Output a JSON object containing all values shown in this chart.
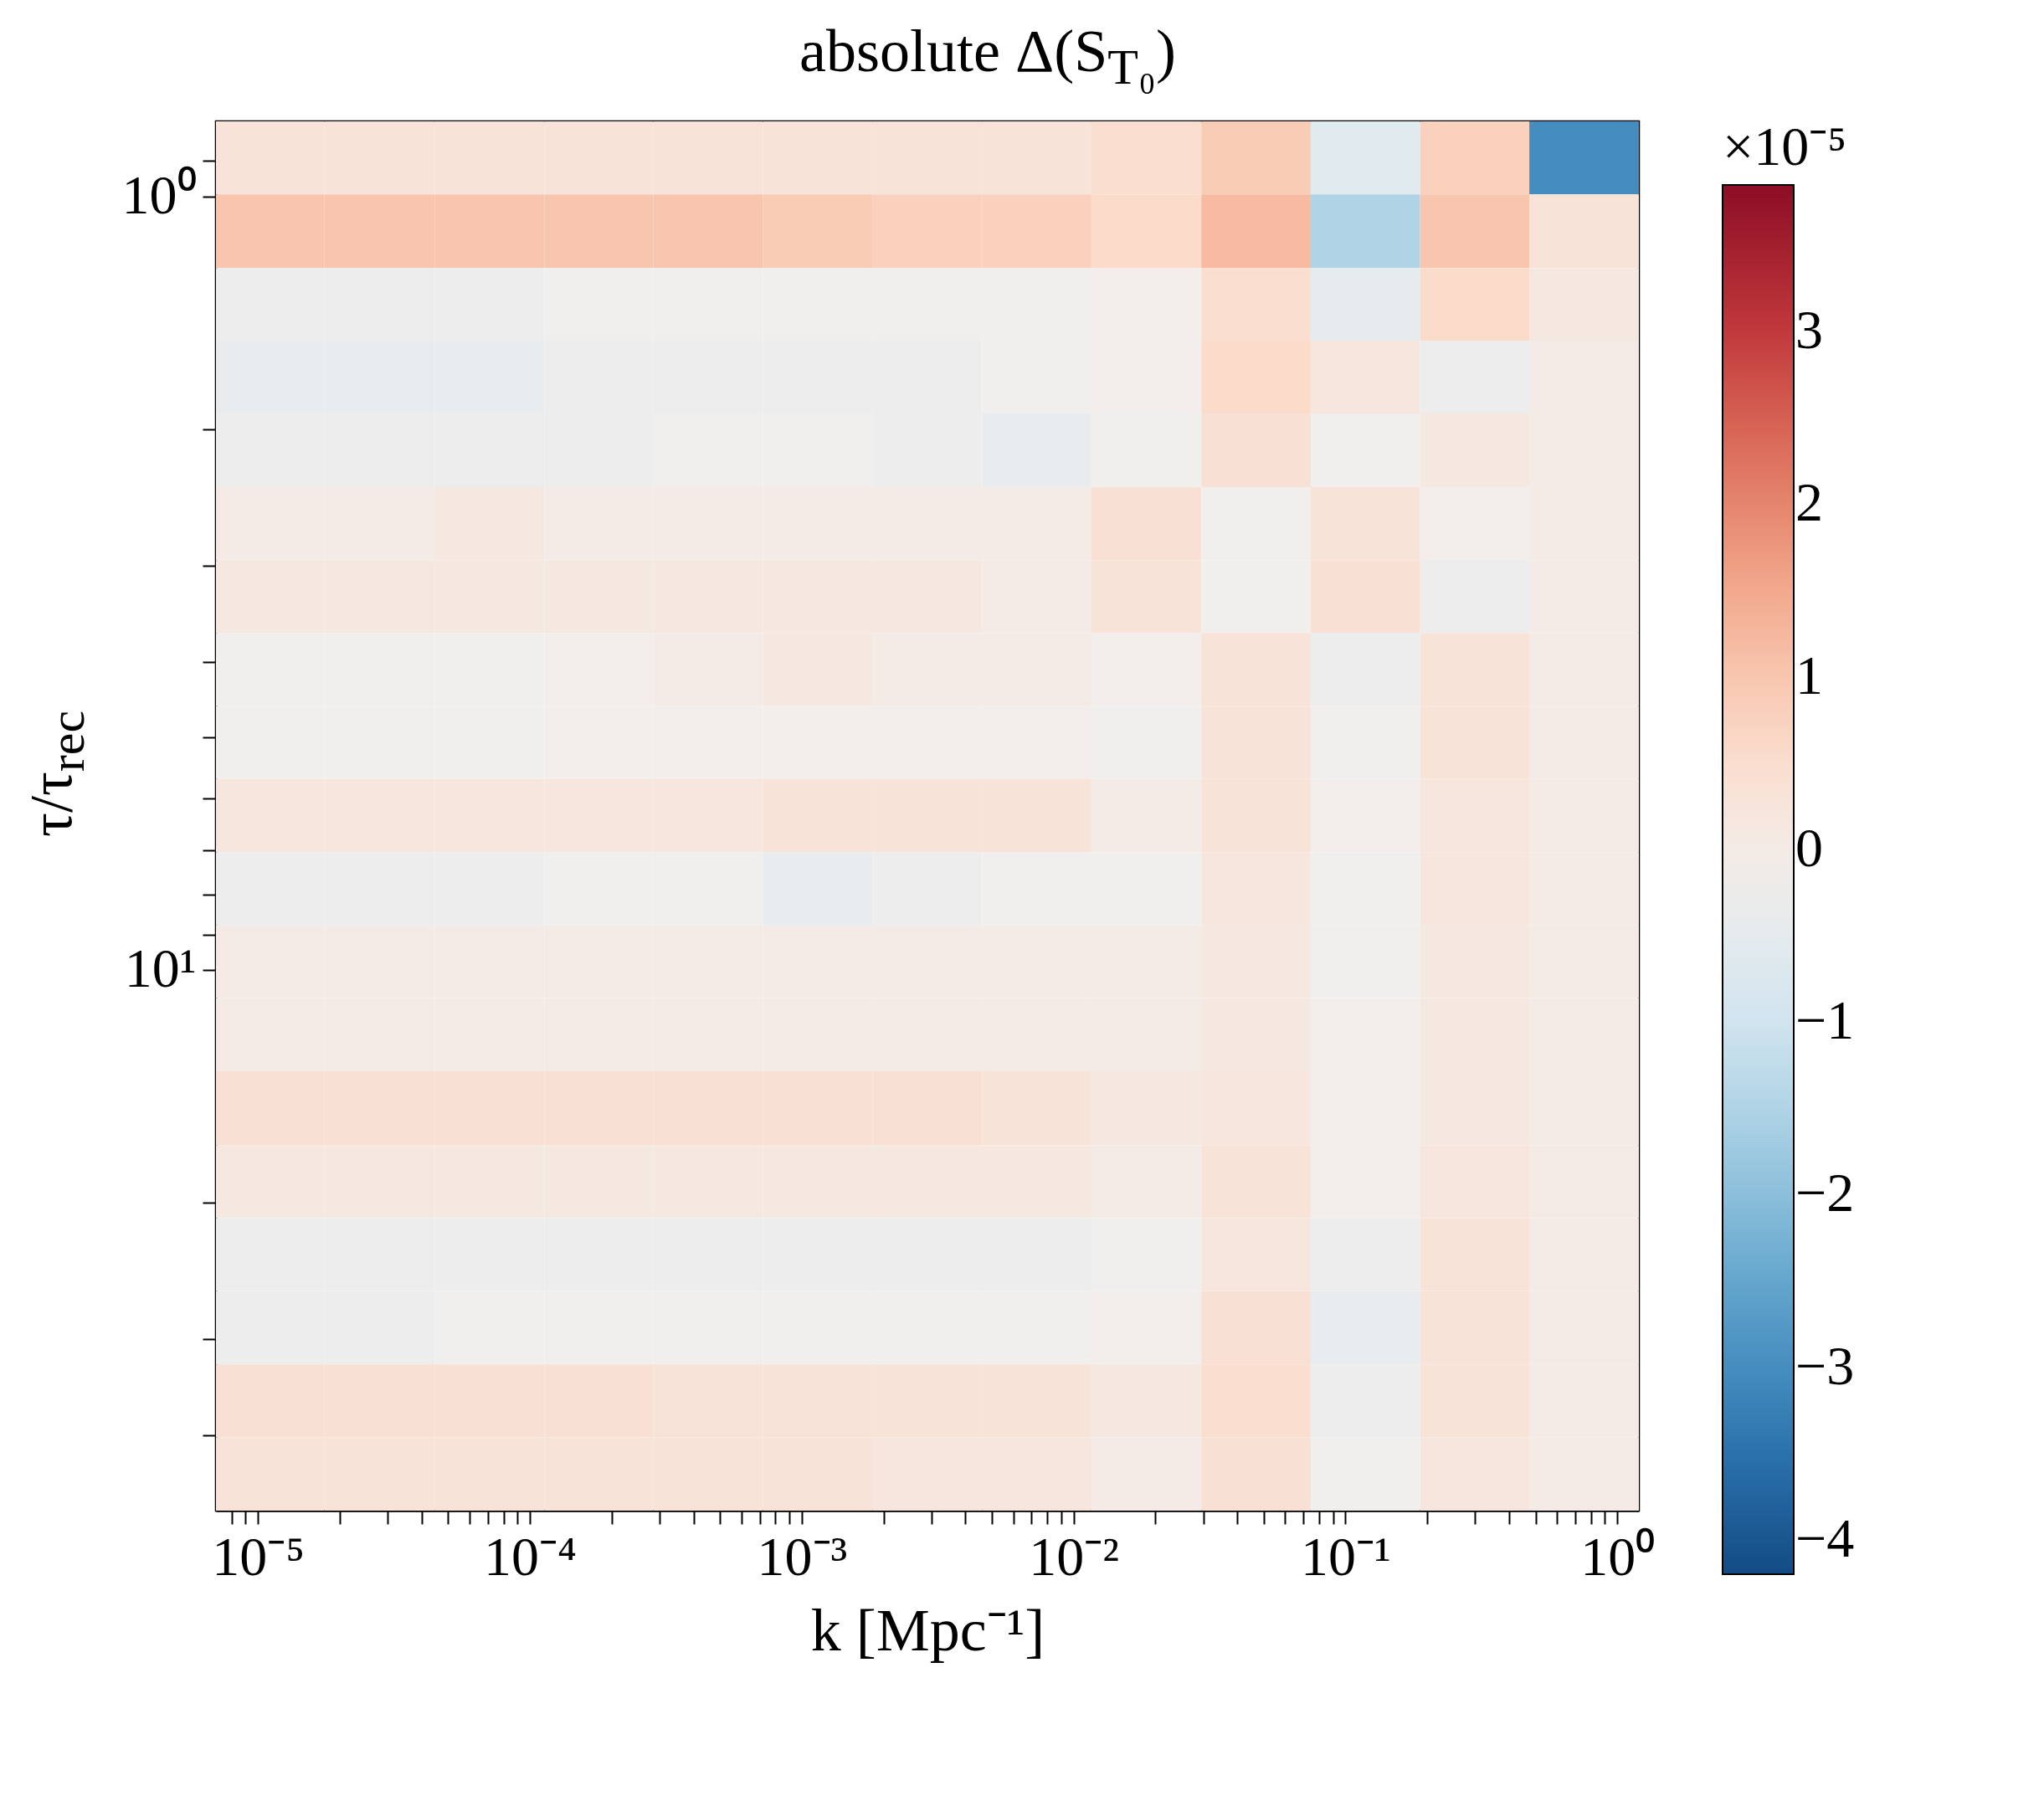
{
  "chart_data": {
    "type": "heatmap",
    "title": "absolute Δ(S$_{T₀}$)",
    "xlabel": "k [Mpc⁻¹]",
    "ylabel": "τ/τ$_{rec}$",
    "clabel": "×10⁻⁵",
    "log": "xy",
    "x": [
      1.1e-05,
      2.8e-05,
      7.1e-05,
      0.00018,
      0.00045,
      0.00115,
      0.0029,
      0.0073,
      0.0185,
      0.047,
      0.118,
      0.3,
      0.75
    ],
    "y": [
      0.89,
      1.11,
      1.38,
      1.71,
      2.13,
      2.65,
      3.29,
      4.09,
      5.08,
      6.32,
      7.85,
      9.77,
      12.1,
      15.1,
      18.8,
      23.3,
      29,
      36.1,
      44.8
    ],
    "cells": [
      [
        0.3,
        0.3,
        0.3,
        0.3,
        0.3,
        0.3,
        0.3,
        0.3,
        0.5,
        0.9,
        -0.6,
        0.8,
        -3.0
      ],
      [
        1.0,
        1.0,
        1.0,
        1.0,
        1.0,
        0.9,
        0.8,
        0.8,
        0.6,
        1.2,
        -1.5,
        1.0,
        0.3
      ],
      [
        -0.3,
        -0.3,
        -0.3,
        -0.2,
        -0.2,
        -0.2,
        -0.2,
        -0.2,
        -0.1,
        0.5,
        -0.5,
        0.6,
        0.1
      ],
      [
        -0.4,
        -0.4,
        -0.4,
        -0.3,
        -0.3,
        -0.3,
        -0.3,
        -0.2,
        -0.1,
        0.6,
        0.2,
        -0.3,
        0
      ],
      [
        -0.3,
        -0.3,
        -0.3,
        -0.3,
        -0.2,
        -0.2,
        -0.3,
        -0.4,
        -0.2,
        0.4,
        -0.2,
        0.1,
        0
      ],
      [
        0,
        0,
        0.1,
        0,
        0,
        0,
        0,
        0,
        0.4,
        -0.2,
        0.3,
        -0.1,
        0
      ],
      [
        0.1,
        0.1,
        0.1,
        0.1,
        0.1,
        0.1,
        0.1,
        0,
        0.3,
        -0.2,
        0.4,
        -0.3,
        0
      ],
      [
        -0.2,
        -0.2,
        -0.2,
        -0.1,
        0,
        0.1,
        0,
        0,
        -0.1,
        0.3,
        -0.3,
        0.3,
        0
      ],
      [
        -0.2,
        -0.2,
        -0.2,
        -0.1,
        -0.1,
        -0.1,
        -0.1,
        -0.1,
        -0.2,
        0.3,
        -0.2,
        0.3,
        0
      ],
      [
        0.2,
        0.2,
        0.2,
        0.2,
        0.2,
        0.3,
        0.3,
        0.3,
        0,
        0.3,
        -0.1,
        0.2,
        0
      ],
      [
        -0.3,
        -0.3,
        -0.3,
        -0.2,
        -0.2,
        -0.4,
        -0.3,
        -0.2,
        -0.2,
        0.2,
        -0.2,
        0.2,
        0
      ],
      [
        0,
        0,
        0,
        0,
        0,
        0,
        0,
        0,
        0,
        0.1,
        -0.2,
        0.1,
        0
      ],
      [
        0,
        0,
        0,
        0,
        0,
        0,
        0,
        0,
        0,
        0.1,
        -0.1,
        0.1,
        0
      ],
      [
        0.4,
        0.4,
        0.4,
        0.4,
        0.4,
        0.4,
        0.4,
        0.3,
        0.1,
        0.2,
        -0.1,
        0.1,
        0
      ],
      [
        0.1,
        0.1,
        0.1,
        0.1,
        0.1,
        0.1,
        0.1,
        0.1,
        0,
        0.3,
        -0.1,
        0.2,
        0
      ],
      [
        -0.3,
        -0.3,
        -0.3,
        -0.3,
        -0.3,
        -0.3,
        -0.3,
        -0.3,
        -0.2,
        0.2,
        -0.3,
        0.3,
        0
      ],
      [
        -0.3,
        -0.3,
        -0.2,
        -0.2,
        -0.2,
        -0.2,
        -0.2,
        -0.2,
        -0.1,
        0.4,
        -0.4,
        0.3,
        0
      ],
      [
        0.4,
        0.4,
        0.4,
        0.4,
        0.3,
        0.3,
        0.3,
        0.3,
        0.1,
        0.5,
        -0.3,
        0.3,
        0
      ],
      [
        0.3,
        0.3,
        0.3,
        0.3,
        0.3,
        0.3,
        0.2,
        0.2,
        0,
        0.4,
        -0.2,
        0.2,
        0
      ]
    ],
    "xlim": [
      7e-06,
      1.2
    ],
    "ylim": [
      50,
      0.8
    ],
    "xticks": [
      {
        "value": 8e-06,
        "label": null
      },
      {
        "value": 9e-06,
        "label": null
      },
      {
        "value": 1e-05,
        "label": "10⁻⁵"
      },
      {
        "value": 2e-05,
        "label": null
      },
      {
        "value": 3e-05,
        "label": null
      },
      {
        "value": 4e-05,
        "label": null
      },
      {
        "value": 5e-05,
        "label": null
      },
      {
        "value": 6e-05,
        "label": null
      },
      {
        "value": 7e-05,
        "label": null
      },
      {
        "value": 8e-05,
        "label": null
      },
      {
        "value": 9e-05,
        "label": null
      },
      {
        "value": 0.0001,
        "label": "10⁻⁴"
      },
      {
        "value": 0.0002,
        "label": null
      },
      {
        "value": 0.0003,
        "label": null
      },
      {
        "value": 0.0004,
        "label": null
      },
      {
        "value": 0.0005,
        "label": null
      },
      {
        "value": 0.0006,
        "label": null
      },
      {
        "value": 0.0007,
        "label": null
      },
      {
        "value": 0.0008,
        "label": null
      },
      {
        "value": 0.0009,
        "label": null
      },
      {
        "value": 0.001,
        "label": "10⁻³"
      },
      {
        "value": 0.002,
        "label": null
      },
      {
        "value": 0.003,
        "label": null
      },
      {
        "value": 0.004,
        "label": null
      },
      {
        "value": 0.005,
        "label": null
      },
      {
        "value": 0.006,
        "label": null
      },
      {
        "value": 0.007,
        "label": null
      },
      {
        "value": 0.008,
        "label": null
      },
      {
        "value": 0.009,
        "label": null
      },
      {
        "value": 0.01,
        "label": "10⁻²"
      },
      {
        "value": 0.02,
        "label": null
      },
      {
        "value": 0.03,
        "label": null
      },
      {
        "value": 0.04,
        "label": null
      },
      {
        "value": 0.05,
        "label": null
      },
      {
        "value": 0.06,
        "label": null
      },
      {
        "value": 0.07,
        "label": null
      },
      {
        "value": 0.08,
        "label": null
      },
      {
        "value": 0.09,
        "label": null
      },
      {
        "value": 0.1,
        "label": "10⁻¹"
      },
      {
        "value": 0.2,
        "label": null
      },
      {
        "value": 0.3,
        "label": null
      },
      {
        "value": 0.4,
        "label": null
      },
      {
        "value": 0.5,
        "label": null
      },
      {
        "value": 0.6,
        "label": null
      },
      {
        "value": 0.7,
        "label": null
      },
      {
        "value": 0.8,
        "label": null
      },
      {
        "value": 0.9,
        "label": null
      },
      {
        "value": 1,
        "label": "10⁰"
      }
    ],
    "yticks": [
      {
        "value": 0.9,
        "label": null
      },
      {
        "value": 1,
        "label": "10⁰"
      },
      {
        "value": 2,
        "label": null
      },
      {
        "value": 3,
        "label": null
      },
      {
        "value": 4,
        "label": null
      },
      {
        "value": 5,
        "label": null
      },
      {
        "value": 6,
        "label": null
      },
      {
        "value": 7,
        "label": null
      },
      {
        "value": 8,
        "label": null
      },
      {
        "value": 9,
        "label": null
      },
      {
        "value": 10,
        "label": "10¹"
      },
      {
        "value": 20,
        "label": null
      },
      {
        "value": 30,
        "label": null
      },
      {
        "value": 40,
        "label": null
      }
    ],
    "clim": [
      -4.2,
      3.85
    ],
    "cticks": [
      -4,
      -3,
      -2,
      -1,
      0,
      1,
      2,
      3
    ]
  }
}
